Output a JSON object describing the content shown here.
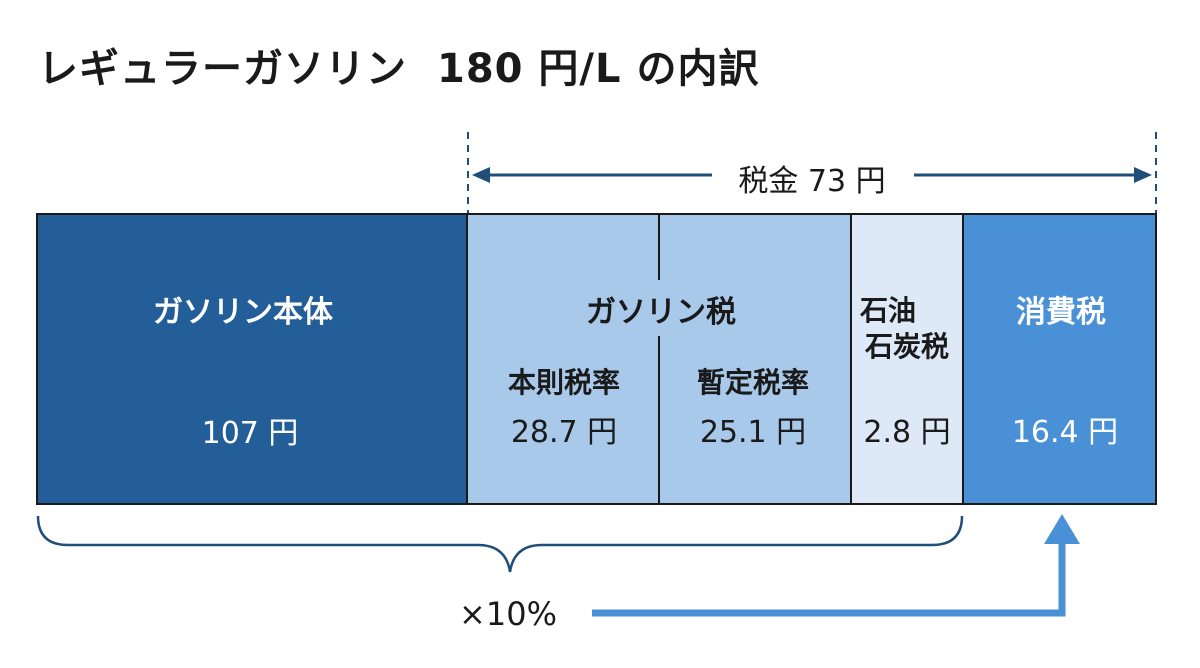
{
  "title": {
    "main": "レギュラーガソリン",
    "price": "180 円/L の内訳"
  },
  "tax_total_label": "税金 73 円",
  "segments": {
    "base": {
      "label": "ガソリン本体",
      "value": "107 円"
    },
    "gasoline_tax": {
      "label": "ガソリン税",
      "honsoku": {
        "label": "本則税率",
        "value": "28.7 円"
      },
      "zantei": {
        "label": "暫定税率",
        "value": "25.1 円"
      }
    },
    "petroleum_coal_tax": {
      "label_line1": "石油",
      "label_line2": "石炭税",
      "value": "2.8 円"
    },
    "consumption_tax": {
      "label": "消費税",
      "value": "16.4 円"
    }
  },
  "multiplier_label": "×10%",
  "colors": {
    "base": "#235e99",
    "gasoline_tax": "#a8c9ea",
    "petroleum_coal_tax": "#dde9f6",
    "consumption_tax": "#4a90d6",
    "arrow": "#4a90d6",
    "line": "#1f4e79"
  }
}
